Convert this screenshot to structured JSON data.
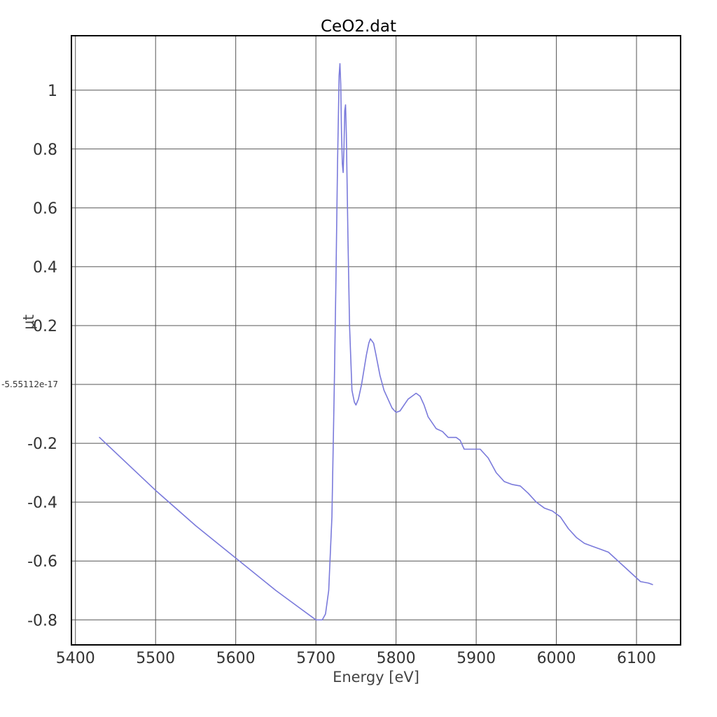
{
  "chart_data": {
    "type": "line",
    "title": "CeO2.dat",
    "xlabel": "Energy [eV]",
    "ylabel": "μt",
    "xlim": [
      5395,
      6155
    ],
    "ylim": [
      -0.885,
      1.185
    ],
    "grid": true,
    "x_ticks": [
      {
        "value": 5400,
        "label": "5400"
      },
      {
        "value": 5500,
        "label": "5500"
      },
      {
        "value": 5600,
        "label": "5600"
      },
      {
        "value": 5700,
        "label": "5700"
      },
      {
        "value": 5800,
        "label": "5800"
      },
      {
        "value": 5900,
        "label": "5900"
      },
      {
        "value": 6000,
        "label": "6000"
      },
      {
        "value": 6100,
        "label": "6100"
      }
    ],
    "y_ticks": [
      {
        "value": 1,
        "label": "1"
      },
      {
        "value": 0.8,
        "label": "0.8"
      },
      {
        "value": 0.6,
        "label": "0.6"
      },
      {
        "value": 0.4,
        "label": "0.4"
      },
      {
        "value": 0.2,
        "label": "0.2"
      },
      {
        "value": 0,
        "label": "-5.55112e-17"
      },
      {
        "value": -0.2,
        "label": "-0.2"
      },
      {
        "value": -0.4,
        "label": "-0.4"
      },
      {
        "value": -0.6,
        "label": "-0.6"
      },
      {
        "value": -0.8,
        "label": "-0.8"
      }
    ],
    "series": [
      {
        "color": "#7a7adb",
        "points": [
          [
            5430,
            -0.18
          ],
          [
            5500,
            -0.36
          ],
          [
            5550,
            -0.48
          ],
          [
            5600,
            -0.59
          ],
          [
            5650,
            -0.7
          ],
          [
            5680,
            -0.76
          ],
          [
            5695,
            -0.79
          ],
          [
            5700,
            -0.8
          ],
          [
            5708,
            -0.8
          ],
          [
            5712,
            -0.78
          ],
          [
            5716,
            -0.7
          ],
          [
            5720,
            -0.45
          ],
          [
            5723,
            0.0
          ],
          [
            5725,
            0.35
          ],
          [
            5727,
            0.75
          ],
          [
            5729,
            1.05
          ],
          [
            5730,
            1.09
          ],
          [
            5731,
            1.02
          ],
          [
            5732,
            0.85
          ],
          [
            5733,
            0.75
          ],
          [
            5734,
            0.72
          ],
          [
            5735,
            0.8
          ],
          [
            5736,
            0.93
          ],
          [
            5737,
            0.95
          ],
          [
            5738,
            0.85
          ],
          [
            5740,
            0.5
          ],
          [
            5742,
            0.2
          ],
          [
            5745,
            -0.02
          ],
          [
            5748,
            -0.06
          ],
          [
            5750,
            -0.07
          ],
          [
            5753,
            -0.05
          ],
          [
            5757,
            0.0
          ],
          [
            5760,
            0.05
          ],
          [
            5763,
            0.1
          ],
          [
            5766,
            0.14
          ],
          [
            5768,
            0.155
          ],
          [
            5772,
            0.14
          ],
          [
            5775,
            0.1
          ],
          [
            5780,
            0.03
          ],
          [
            5785,
            -0.02
          ],
          [
            5790,
            -0.05
          ],
          [
            5795,
            -0.08
          ],
          [
            5800,
            -0.095
          ],
          [
            5805,
            -0.09
          ],
          [
            5810,
            -0.07
          ],
          [
            5815,
            -0.05
          ],
          [
            5820,
            -0.04
          ],
          [
            5825,
            -0.03
          ],
          [
            5830,
            -0.04
          ],
          [
            5835,
            -0.07
          ],
          [
            5840,
            -0.11
          ],
          [
            5845,
            -0.13
          ],
          [
            5850,
            -0.15
          ],
          [
            5858,
            -0.16
          ],
          [
            5865,
            -0.18
          ],
          [
            5875,
            -0.18
          ],
          [
            5880,
            -0.19
          ],
          [
            5885,
            -0.22
          ],
          [
            5895,
            -0.22
          ],
          [
            5905,
            -0.22
          ],
          [
            5915,
            -0.25
          ],
          [
            5925,
            -0.3
          ],
          [
            5935,
            -0.33
          ],
          [
            5945,
            -0.34
          ],
          [
            5955,
            -0.345
          ],
          [
            5965,
            -0.37
          ],
          [
            5975,
            -0.4
          ],
          [
            5985,
            -0.42
          ],
          [
            5995,
            -0.43
          ],
          [
            6005,
            -0.45
          ],
          [
            6015,
            -0.49
          ],
          [
            6025,
            -0.52
          ],
          [
            6035,
            -0.54
          ],
          [
            6045,
            -0.55
          ],
          [
            6055,
            -0.56
          ],
          [
            6065,
            -0.57
          ],
          [
            6075,
            -0.595
          ],
          [
            6085,
            -0.62
          ],
          [
            6095,
            -0.645
          ],
          [
            6105,
            -0.67
          ],
          [
            6115,
            -0.675
          ],
          [
            6120,
            -0.68
          ]
        ]
      }
    ]
  }
}
